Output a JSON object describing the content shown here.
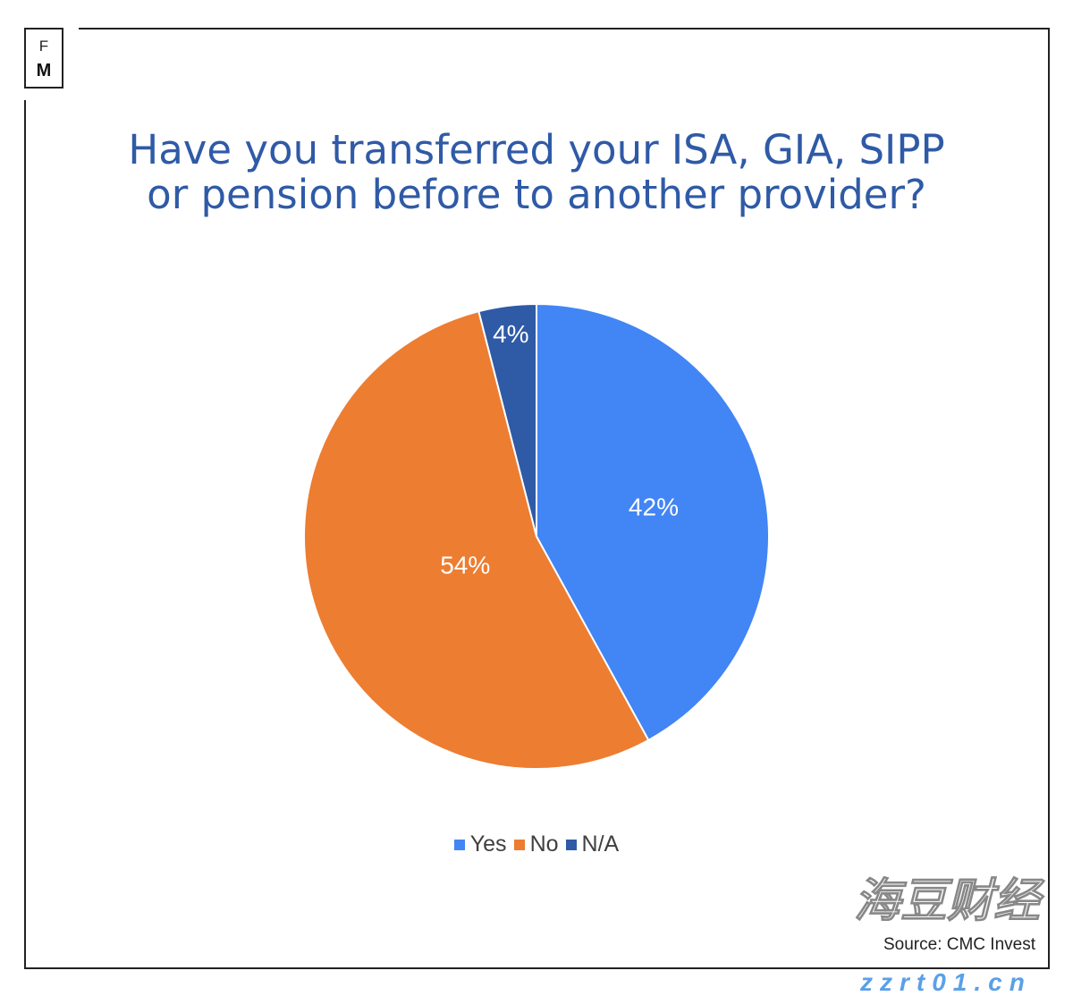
{
  "logo": {
    "top": "F",
    "bottom": "M"
  },
  "title_lines": [
    "Have you transferred your ISA, GIA, SIPP",
    "or pension before to another provider?"
  ],
  "chart_data": {
    "type": "pie",
    "title": "Have you transferred your ISA, GIA, SIPP or pension before to another provider?",
    "categories": [
      "Yes",
      "No",
      "N/A"
    ],
    "values": [
      42,
      54,
      4
    ],
    "labels": [
      "42%",
      "54%",
      "4%"
    ],
    "colors": [
      "#4285f4",
      "#ed7d31",
      "#2f5aa6"
    ],
    "start_angle": "12 o'clock",
    "direction": "clockwise",
    "legend_position": "bottom"
  },
  "source": "Source: CMC Invest",
  "watermark": {
    "text": "zzrt01.cn",
    "chinese": "海豆财经"
  }
}
